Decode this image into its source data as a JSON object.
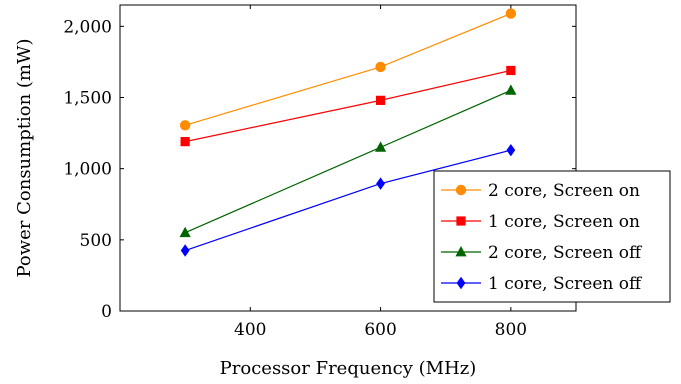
{
  "chart_data": {
    "type": "line",
    "title": "",
    "xlabel": "Processor Frequency (MHz)",
    "ylabel": "Power Consumption (mW)",
    "xlim": [
      200,
      900
    ],
    "ylim": [
      0,
      2150
    ],
    "x": [
      300,
      600,
      800
    ],
    "xticks": [
      400,
      600,
      800
    ],
    "xtick_labels": [
      "400",
      "600",
      "800"
    ],
    "yticks": [
      0,
      500,
      1000,
      1500,
      2000
    ],
    "ytick_labels": [
      "0",
      "500",
      "1,000",
      "1,500",
      "2,000"
    ],
    "grid": false,
    "legend_position": "bottom-right",
    "series": [
      {
        "name": "2 core, Screen on",
        "color": "#ff8c00",
        "marker": "circle",
        "values": [
          1305,
          1715,
          2090
        ]
      },
      {
        "name": "1 core, Screen on",
        "color": "#ff0000",
        "marker": "square",
        "values": [
          1190,
          1480,
          1690
        ]
      },
      {
        "name": "2 core, Screen off",
        "color": "#006400",
        "marker": "triangle",
        "values": [
          550,
          1150,
          1550
        ]
      },
      {
        "name": "1 core, Screen off",
        "color": "#0000ff",
        "marker": "diamond",
        "values": [
          425,
          895,
          1130
        ]
      }
    ]
  }
}
